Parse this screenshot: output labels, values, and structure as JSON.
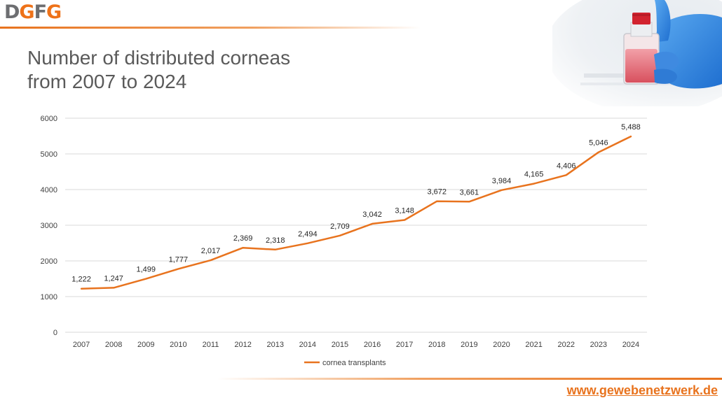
{
  "header": {
    "logo_text": "DGFG",
    "logo_parts": [
      "D",
      "G",
      "F",
      "G"
    ],
    "accent_color": "#e8731e"
  },
  "title_lines": [
    "Number of distributed corneas",
    "from 2007 to 2024"
  ],
  "photo": {
    "icon": "gloved-hand-holding-cell-culture-flask-icon"
  },
  "footer": {
    "url": "www.gewebenetzwerk.de"
  },
  "chart_data": {
    "type": "line",
    "title": "",
    "xlabel": "",
    "ylabel": "",
    "categories": [
      "2007",
      "2008",
      "2009",
      "2010",
      "2011",
      "2012",
      "2013",
      "2014",
      "2015",
      "2016",
      "2017",
      "2018",
      "2019",
      "2020",
      "2021",
      "2022",
      "2023",
      "2024"
    ],
    "series": [
      {
        "name": "cornea transplants",
        "color": "#e8731e",
        "values": [
          1222,
          1247,
          1499,
          1777,
          2017,
          2369,
          2318,
          2494,
          2709,
          3042,
          3148,
          3672,
          3661,
          3984,
          4165,
          4406,
          5046,
          5488
        ],
        "labels": [
          "1,222",
          "1,247",
          "1,499",
          "1,777",
          "2,017",
          "2,369",
          "2,318",
          "2,494",
          "2,709",
          "3,042",
          "3,148",
          "3,672",
          "3,661",
          "3,984",
          "4,165",
          "4,406",
          "5,046",
          "5,488"
        ]
      }
    ],
    "ylim": [
      0,
      6000
    ],
    "yticks": [
      0,
      1000,
      2000,
      3000,
      4000,
      5000,
      6000
    ],
    "grid": true,
    "legend_position": "bottom"
  }
}
